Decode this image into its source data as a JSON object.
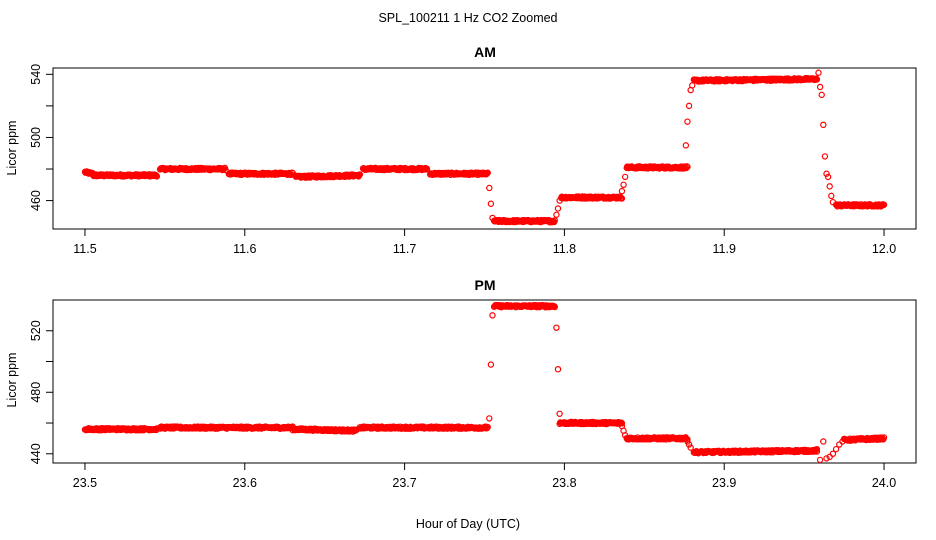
{
  "figure": {
    "title": "SPL_100211  1 Hz CO2 Zoomed",
    "xlabel": "Hour of Day (UTC)"
  },
  "colors": {
    "points": "#ff0000",
    "axes": "#000000"
  },
  "chart_data": [
    {
      "type": "scatter",
      "title": "AM",
      "xlabel": "",
      "ylabel": "Licor ppm",
      "xlim": [
        11.48,
        12.02
      ],
      "ylim": [
        442,
        544
      ],
      "xticks": [
        "11.5",
        "11.6",
        "11.7",
        "11.8",
        "11.9",
        "12.0"
      ],
      "xtick_values": [
        11.5,
        11.6,
        11.7,
        11.8,
        11.9,
        12.0
      ],
      "yticks": [
        "460",
        "500",
        "540"
      ],
      "ytick_values": [
        460,
        480,
        500,
        520,
        540
      ],
      "ytick_labels_shown": [
        460,
        500,
        540
      ],
      "grid": false,
      "marker": "open-circle",
      "series": [
        {
          "segments": [
            {
              "x": [
                11.5,
                11.505
              ],
              "y": [
                478,
                477
              ]
            },
            {
              "x": [
                11.505,
                11.545
              ],
              "y": [
                476,
                476
              ]
            },
            {
              "x": [
                11.547,
                11.588
              ],
              "y": [
                480,
                480
              ]
            },
            {
              "x": [
                11.59,
                11.63
              ],
              "y": [
                477,
                477
              ]
            },
            {
              "x": [
                11.632,
                11.672
              ],
              "y": [
                475,
                476
              ]
            },
            {
              "x": [
                11.674,
                11.714
              ],
              "y": [
                480,
                480
              ]
            },
            {
              "x": [
                11.716,
                11.752
              ],
              "y": [
                477,
                477
              ]
            },
            {
              "x": [
                11.756,
                11.794
              ],
              "y": [
                447,
                447
              ]
            },
            {
              "x": [
                11.798,
                11.836
              ],
              "y": [
                462,
                462
              ]
            },
            {
              "x": [
                11.839,
                11.877
              ],
              "y": [
                481,
                481
              ]
            },
            {
              "x": [
                11.881,
                11.958
              ],
              "y": [
                536,
                537
              ]
            },
            {
              "x": [
                11.97,
                12.0
              ],
              "y": [
                457,
                457
              ]
            }
          ],
          "transitions": [
            {
              "x": [
                11.753,
                11.754,
                11.755
              ],
              "y": [
                468,
                458,
                449
              ]
            },
            {
              "x": [
                11.795,
                11.796,
                11.797
              ],
              "y": [
                451,
                455,
                460
              ]
            },
            {
              "x": [
                11.836,
                11.837,
                11.838
              ],
              "y": [
                466,
                470,
                475
              ]
            },
            {
              "x": [
                11.876,
                11.877,
                11.878,
                11.879,
                11.88
              ],
              "y": [
                495,
                510,
                520,
                530,
                533
              ]
            },
            {
              "x": [
                11.959,
                11.96,
                11.961,
                11.962,
                11.963,
                11.964,
                11.965,
                11.966,
                11.967,
                11.968
              ],
              "y": [
                541,
                532,
                527,
                508,
                488,
                477,
                475,
                469,
                463,
                459
              ]
            }
          ]
        }
      ]
    },
    {
      "type": "scatter",
      "title": "PM",
      "xlabel": "",
      "ylabel": "Licor ppm",
      "xlim": [
        23.48,
        24.02
      ],
      "ylim": [
        434,
        540
      ],
      "xticks": [
        "23.5",
        "23.6",
        "23.7",
        "23.8",
        "23.9",
        "24.0"
      ],
      "xtick_values": [
        23.5,
        23.6,
        23.7,
        23.8,
        23.9,
        24.0
      ],
      "yticks": [
        "440",
        "480",
        "520"
      ],
      "ytick_values": [
        440,
        460,
        480,
        500,
        520
      ],
      "ytick_labels_shown": [
        440,
        480,
        520
      ],
      "grid": false,
      "marker": "open-circle",
      "series": [
        {
          "segments": [
            {
              "x": [
                23.5,
                23.545
              ],
              "y": [
                456,
                456
              ]
            },
            {
              "x": [
                23.547,
                23.63
              ],
              "y": [
                457,
                457
              ]
            },
            {
              "x": [
                23.63,
                23.67
              ],
              "y": [
                456,
                455
              ]
            },
            {
              "x": [
                23.672,
                23.752
              ],
              "y": [
                457,
                457
              ]
            },
            {
              "x": [
                23.756,
                23.794
              ],
              "y": [
                536,
                536
              ]
            },
            {
              "x": [
                23.797,
                23.836
              ],
              "y": [
                460,
                460
              ]
            },
            {
              "x": [
                23.839,
                23.877
              ],
              "y": [
                450,
                450
              ]
            },
            {
              "x": [
                23.881,
                23.958
              ],
              "y": [
                441,
                442
              ]
            },
            {
              "x": [
                23.975,
                24.0
              ],
              "y": [
                449,
                450
              ]
            }
          ],
          "transitions": [
            {
              "x": [
                23.753,
                23.754,
                23.755
              ],
              "y": [
                463,
                498,
                530
              ]
            },
            {
              "x": [
                23.795,
                23.796,
                23.797
              ],
              "y": [
                522,
                495,
                466
              ]
            },
            {
              "x": [
                23.836,
                23.837,
                23.838
              ],
              "y": [
                458,
                455,
                452
              ]
            },
            {
              "x": [
                23.877,
                23.878,
                23.879
              ],
              "y": [
                448,
                446,
                444
              ]
            },
            {
              "x": [
                23.958,
                23.96,
                23.962,
                23.964,
                23.966,
                23.968,
                23.97,
                23.972,
                23.974
              ],
              "y": [
                443,
                436,
                448,
                437,
                438,
                440,
                443,
                446,
                448
              ]
            }
          ]
        }
      ]
    }
  ]
}
